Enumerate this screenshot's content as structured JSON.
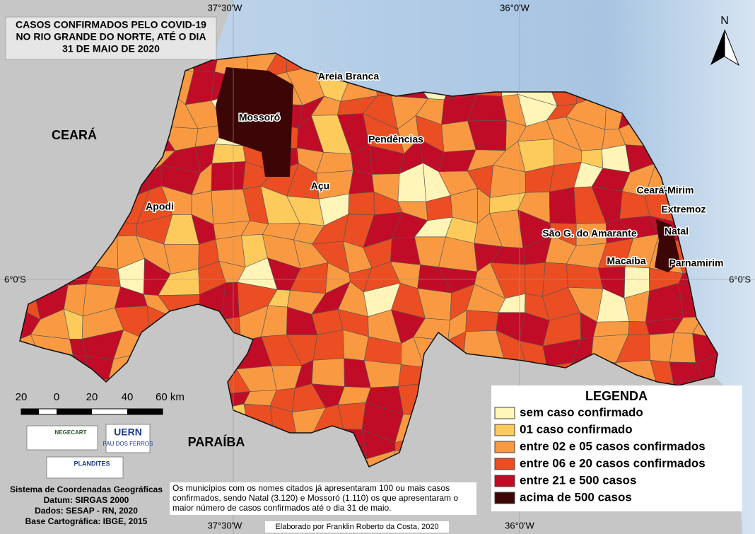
{
  "title": [
    "CASOS CONFIRMADOS PELO COVID-19",
    "NO RIO GRANDE DO NORTE, ATÉ O DIA",
    "31 DE MAIO DE 2020"
  ],
  "graticule": {
    "top": [
      "37°30'W",
      "36°0'W"
    ],
    "bottom": [
      "37°30'W",
      "36°0'W"
    ],
    "left": "6°0'S",
    "right": "6°0'S"
  },
  "north": "N",
  "regions": [
    "CEARÁ",
    "PARAÍBA"
  ],
  "cities": [
    "Mossoró",
    "Areia Branca",
    "Pendências",
    "Açu",
    "Apodi",
    "Ceará-Mirim",
    "Extremoz",
    "Natal",
    "São G. do Amarante",
    "Macaíba",
    "Parnamirim"
  ],
  "scale_bar": {
    "labels": [
      "20",
      "0",
      "20",
      "40",
      "60 km"
    ]
  },
  "logos": [
    "NEGECART",
    "UERN",
    "PAU DOS FERROS",
    "PLANDITES"
  ],
  "legend": {
    "title": "LEGENDA",
    "items": [
      {
        "label": "sem caso confirmado",
        "color": "#fff5b8"
      },
      {
        "label": "01 caso confirmado",
        "color": "#fdcb5c"
      },
      {
        "label": "entre 02 e 05 casos confirmados",
        "color": "#f99a42"
      },
      {
        "label": "entre 06 e 20 casos confirmados",
        "color": "#ea4e22"
      },
      {
        "label": "entre 21 e 500 casos",
        "color": "#c10c27"
      },
      {
        "label": "acima de 500 casos",
        "color": "#3d0606"
      }
    ]
  },
  "note": [
    "Os municípios com os nomes citados já apresentaram 100 ou mais casos",
    "confirmados, sendo Natal (3.120) e Mossoró (1.110) os que apresentaram o",
    "maior número de casos confirmados até o dia 31 de maio."
  ],
  "system": [
    "Sistema de Coordenadas Geográficas",
    "Datum: SIRGAS 2000",
    "Dados: SESAP - RN, 2020",
    "Base Cartográfica: IBGE, 2015"
  ],
  "credit": "Elaborado por Franklin Roberto da Costa, 2020"
}
